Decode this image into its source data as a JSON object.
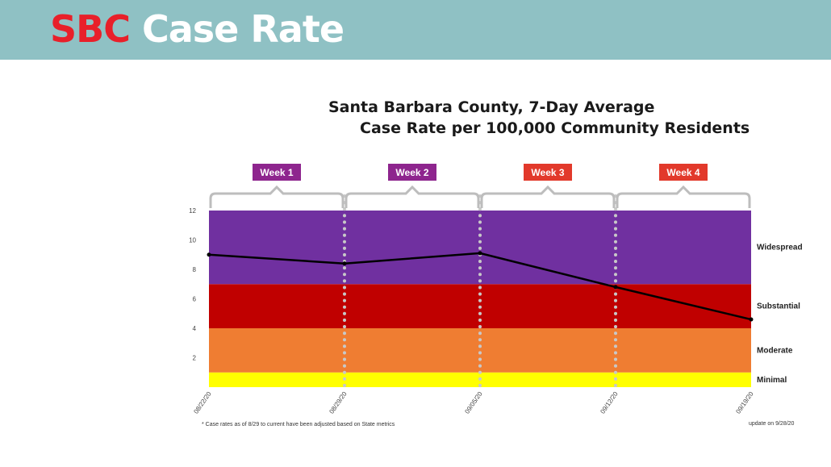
{
  "header": {
    "title_highlight": "SBC",
    "title_rest": "Case Rate",
    "colors": {
      "banner": "#8fc1c4",
      "highlight": "#e8202a",
      "text": "#ffffff"
    }
  },
  "chart_data": {
    "type": "line",
    "title": "Santa Barbara County, 7-Day Average",
    "subtitle": "Case Rate per 100,000 Community Residents",
    "x": [
      "08/22/20",
      "08/29/20",
      "09/05/20",
      "09/12/20",
      "09/19/20"
    ],
    "series": [
      {
        "values": [
          9.0,
          8.4,
          9.1,
          6.8,
          4.6
        ],
        "color": "#000000"
      }
    ],
    "ylim": [
      0,
      12
    ],
    "yticks": [
      "",
      "2",
      "4",
      "6",
      "8",
      "10",
      "12"
    ],
    "ytick_values": [
      0,
      2,
      4,
      6,
      8,
      10,
      12
    ],
    "bands": [
      {
        "label": "Minimal",
        "from": 0,
        "to": 1,
        "color": "#ffff00"
      },
      {
        "label": "Moderate",
        "from": 1,
        "to": 4,
        "color": "#ef7d32"
      },
      {
        "label": "Substantial",
        "from": 4,
        "to": 7,
        "color": "#c00000"
      },
      {
        "label": "Widespread",
        "from": 7,
        "to": 12,
        "color": "#7030a0"
      }
    ],
    "weeks": [
      {
        "label": "Week 1",
        "color": "#8e258e"
      },
      {
        "label": "Week 2",
        "color": "#8e258e"
      },
      {
        "label": "Week 3",
        "color": "#e2392b"
      },
      {
        "label": "Week 4",
        "color": "#e2392b"
      }
    ],
    "footnote": "* Case rates as of 8/29 to current have been adjusted based on State metrics",
    "update_note": "update on 9/28/20"
  }
}
